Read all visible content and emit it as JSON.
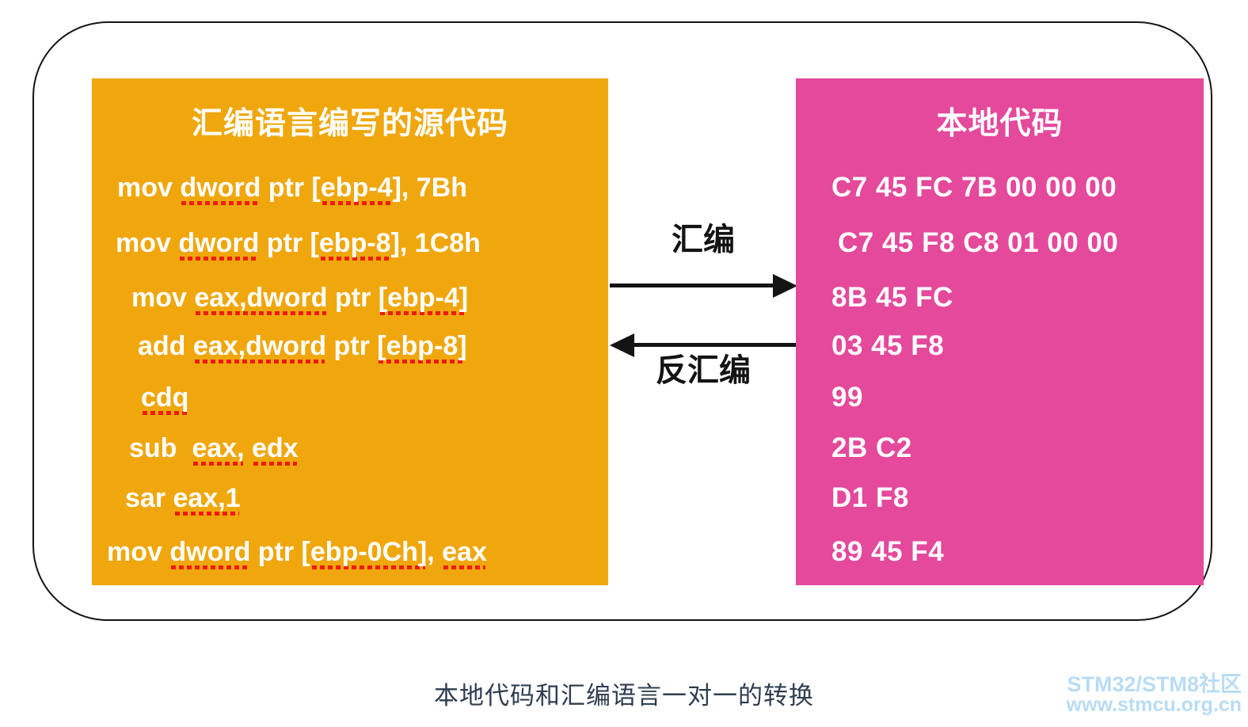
{
  "assembly_box": {
    "title": "汇编语言编写的源代码",
    "lines": [
      {
        "segments": [
          {
            "t": "mov ",
            "u": false
          },
          {
            "t": "dword",
            "u": true
          },
          {
            "t": " ptr [",
            "u": false
          },
          {
            "t": "ebp-4",
            "u": true
          },
          {
            "t": "], 7Bh",
            "u": false
          }
        ]
      },
      {
        "segments": [
          {
            "t": "mov ",
            "u": false
          },
          {
            "t": "dword",
            "u": true
          },
          {
            "t": " ptr [",
            "u": false
          },
          {
            "t": "ebp-8",
            "u": true
          },
          {
            "t": "], 1C8h",
            "u": false
          }
        ]
      },
      {
        "segments": [
          {
            "t": "mov ",
            "u": false
          },
          {
            "t": "eax,dword",
            "u": true
          },
          {
            "t": " ptr ",
            "u": false
          },
          {
            "t": "[ebp-4]",
            "u": true
          }
        ]
      },
      {
        "segments": [
          {
            "t": "add ",
            "u": false
          },
          {
            "t": "eax,dword",
            "u": true
          },
          {
            "t": " ptr ",
            "u": false
          },
          {
            "t": "[ebp-8]",
            "u": true
          }
        ]
      },
      {
        "segments": [
          {
            "t": "cdq",
            "u": true
          }
        ]
      },
      {
        "segments": [
          {
            "t": "sub  ",
            "u": false
          },
          {
            "t": "eax,",
            "u": true
          },
          {
            "t": " ",
            "u": false
          },
          {
            "t": "edx",
            "u": true
          }
        ]
      },
      {
        "segments": [
          {
            "t": "sar ",
            "u": false
          },
          {
            "t": "eax,1",
            "u": true
          }
        ]
      },
      {
        "segments": [
          {
            "t": "mov ",
            "u": false
          },
          {
            "t": "dword",
            "u": true
          },
          {
            "t": " ptr [",
            "u": false
          },
          {
            "t": "ebp-0Ch]",
            "u": true
          },
          {
            "t": ", ",
            "u": false
          },
          {
            "t": "eax",
            "u": true
          }
        ]
      }
    ]
  },
  "native_box": {
    "title": "本地代码",
    "lines": [
      "C7 45 FC 7B 00 00 00",
      "C7 45 F8 C8 01 00 00",
      "8B 45 FC",
      "03 45 F8",
      "99",
      "2B C2",
      "D1 F8",
      "89 45 F4"
    ]
  },
  "arrows": {
    "assemble_label": "汇编",
    "disassemble_label": "反汇编"
  },
  "caption": "本地代码和汇编语言一对一的转换",
  "watermark": {
    "line1": "STM32/STM8社区",
    "line2": "www.stmcu.org.cn"
  },
  "colors": {
    "assembly-box-bg": "#F0A70D",
    "native-box-bg": "#E4499B",
    "squiggle": "#EE1C10",
    "caption-text": "#2F3E50",
    "watermark-text": "#B8DCF4",
    "frame-border": "#141414"
  }
}
